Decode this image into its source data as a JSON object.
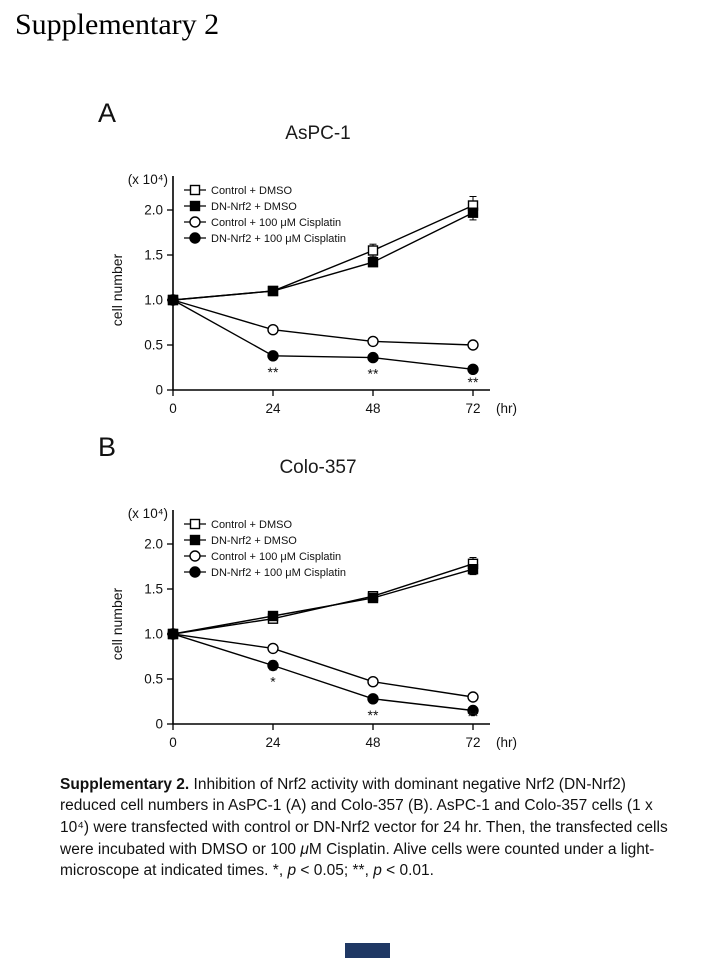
{
  "page": {
    "title": "Supplementary 2"
  },
  "footer": {
    "accent_color": "#1f3864"
  },
  "caption": {
    "parts": [
      {
        "text": "Supplementary 2.",
        "bold": true
      },
      {
        "text": " Inhibition of Nrf2 activity with dominant negative Nrf2 (DN-Nrf2) reduced cell numbers in AsPC-1 (A) and Colo-357 (B). AsPC-1 and Colo-357 cells (1 x 10⁴) were transfected with control or DN-Nrf2 vector for 24 hr. Then, the transfected cells were incubated with DMSO or 100 "
      },
      {
        "text": "μ",
        "italic": true
      },
      {
        "text": "M Cisplatin. Alive cells were counted under a light-microscope at indicated times.  *, "
      },
      {
        "text": "p",
        "italic": true
      },
      {
        "text": " < 0.05; **, "
      },
      {
        "text": "p",
        "italic": true
      },
      {
        "text": " < 0.01."
      }
    ]
  },
  "chart_data": [
    {
      "type": "line",
      "panel_label": "A",
      "title": "AsPC-1",
      "ylabel": "cell number",
      "y_unit": "(x 10⁴)",
      "xlabel": "(hr)",
      "x": [
        0,
        24,
        48,
        72
      ],
      "ylim": [
        0,
        2.3
      ],
      "grid": false,
      "legend_position": "top-left",
      "yticks": [
        {
          "v": 0,
          "label": "0"
        },
        {
          "v": 0.5,
          "label": "0.5"
        },
        {
          "v": 1,
          "label": "1.0"
        },
        {
          "v": 1.5,
          "label": "1.5"
        },
        {
          "v": 2,
          "label": "2.0"
        }
      ],
      "series": [
        {
          "name": "Control + DMSO",
          "marker": "open-square",
          "values": [
            1.0,
            1.1,
            1.55,
            2.05
          ],
          "errors": [
            0,
            0,
            0.07,
            0.1
          ]
        },
        {
          "name": "DN-Nrf2 + DMSO",
          "marker": "filled-square",
          "values": [
            1.0,
            1.1,
            1.42,
            1.97
          ],
          "errors": [
            0,
            0,
            0.04,
            0.08
          ]
        },
        {
          "name": "Control + 100 μM Cisplatin",
          "marker": "open-circle",
          "values": [
            1.0,
            0.67,
            0.54,
            0.5
          ],
          "errors": [
            0,
            0.03,
            0.03,
            0.03
          ]
        },
        {
          "name": "DN-Nrf2 + 100 μM Cisplatin",
          "marker": "filled-circle",
          "values": [
            1.0,
            0.38,
            0.36,
            0.23
          ],
          "errors": [
            0,
            0.03,
            0.03,
            0.03
          ]
        }
      ],
      "annotations": [
        {
          "x": 24,
          "y": 0.38,
          "text": "**"
        },
        {
          "x": 48,
          "y": 0.36,
          "text": "**"
        },
        {
          "x": 72,
          "y": 0.23,
          "text": "**"
        }
      ]
    },
    {
      "type": "line",
      "panel_label": "B",
      "title": "Colo-357",
      "ylabel": "cell number",
      "y_unit": "(x 10⁴)",
      "xlabel": "(hr)",
      "x": [
        0,
        24,
        48,
        72
      ],
      "ylim": [
        0,
        2.3
      ],
      "grid": false,
      "legend_position": "top-left",
      "yticks": [
        {
          "v": 0,
          "label": "0"
        },
        {
          "v": 0.5,
          "label": "0.5"
        },
        {
          "v": 1,
          "label": "1.0"
        },
        {
          "v": 1.5,
          "label": "1.5"
        },
        {
          "v": 2,
          "label": "2.0"
        }
      ],
      "series": [
        {
          "name": "Control + DMSO",
          "marker": "open-square",
          "values": [
            1.0,
            1.17,
            1.42,
            1.78
          ],
          "errors": [
            0,
            0.03,
            0.04,
            0.07
          ]
        },
        {
          "name": "DN-Nrf2 + DMSO",
          "marker": "filled-square",
          "values": [
            1.0,
            1.2,
            1.4,
            1.72
          ],
          "errors": [
            0,
            0.03,
            0.04,
            0.06
          ]
        },
        {
          "name": "Control + 100 μM Cisplatin",
          "marker": "open-circle",
          "values": [
            1.0,
            0.84,
            0.47,
            0.3
          ],
          "errors": [
            0,
            0.04,
            0.03,
            0.03
          ]
        },
        {
          "name": "DN-Nrf2 + 100 μM Cisplatin",
          "marker": "filled-circle",
          "values": [
            1.0,
            0.65,
            0.28,
            0.15
          ],
          "errors": [
            0,
            0.05,
            0.04,
            0.03
          ]
        }
      ],
      "annotations": [
        {
          "x": 24,
          "y": 0.65,
          "text": "*"
        },
        {
          "x": 48,
          "y": 0.28,
          "text": "**"
        },
        {
          "x": 72,
          "y": 0.15,
          "text": "**"
        }
      ]
    }
  ]
}
